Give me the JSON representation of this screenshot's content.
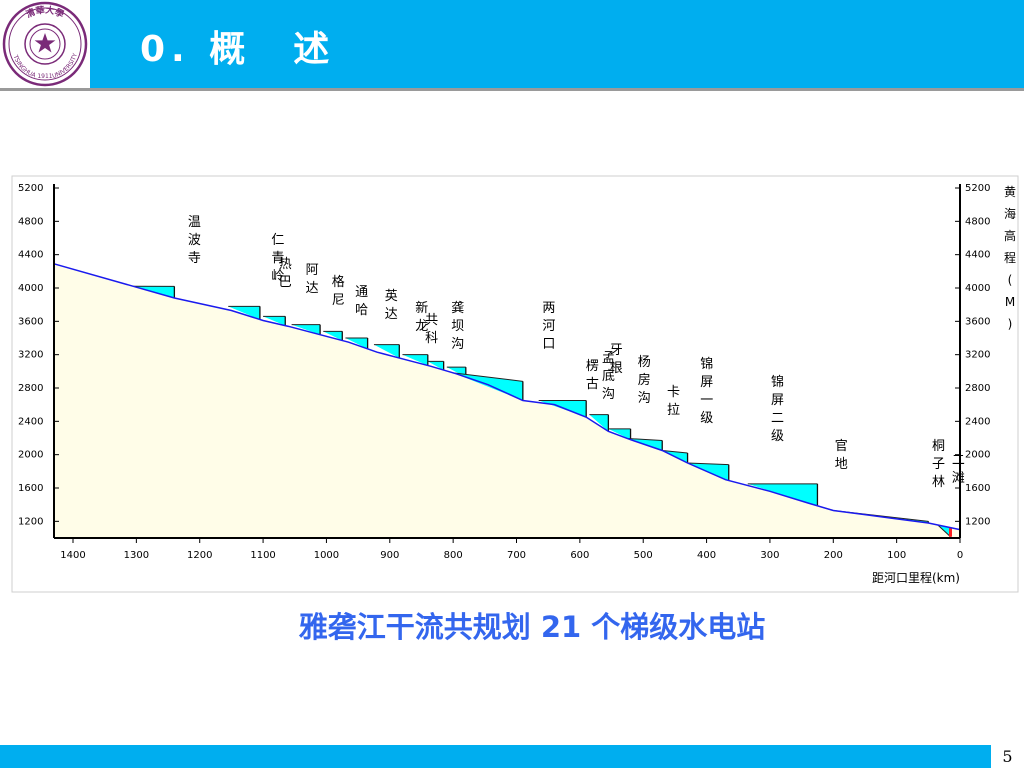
{
  "slide": {
    "title": "0. 概　述",
    "caption": "雅砻江干流共规划 21 个梯级水电站",
    "page_number": "5"
  },
  "logo": {
    "top_text": "清華大學",
    "left_text": "TSINGHUA",
    "right_text": "UNIVERSITY",
    "year": "1911"
  },
  "colors": {
    "header": "#00aeef",
    "caption": "#3366ee",
    "reservoir": "#00ffff",
    "river": "#1a1aee",
    "grid": "#ffe033"
  },
  "chart_data": {
    "type": "line",
    "xlabel": "距河口里程(km)",
    "ylabel": "黄海高程(M)",
    "xlim": [
      1430,
      0
    ],
    "ylim": [
      1000,
      5200
    ],
    "x_ticks": [
      1400,
      1300,
      1200,
      1100,
      1000,
      900,
      800,
      700,
      600,
      500,
      400,
      300,
      200,
      100,
      0
    ],
    "y_ticks": [
      1200,
      1600,
      2000,
      2400,
      2800,
      3200,
      3600,
      4000,
      4400,
      4800,
      5200
    ],
    "grid": true,
    "profile_x": [
      1430,
      1300,
      1240,
      1150,
      1100,
      1060,
      1010,
      965,
      920,
      875,
      835,
      795,
      745,
      690,
      640,
      590,
      555,
      520,
      470,
      430,
      370,
      300,
      240,
      200,
      150,
      50,
      0
    ],
    "profile_y": [
      4290,
      4010,
      3880,
      3730,
      3610,
      3540,
      3440,
      3350,
      3230,
      3140,
      3060,
      2970,
      2840,
      2650,
      2600,
      2450,
      2280,
      2180,
      2050,
      1900,
      1700,
      1560,
      1420,
      1330,
      1280,
      1180,
      1100
    ],
    "stations": [
      {
        "name": "温波寺",
        "label_lines": [
          "温",
          "波",
          "寺"
        ],
        "km": 1240,
        "normal_level": 4020,
        "reservoir_length_km": 65
      },
      {
        "name": "仁青岭",
        "label_lines": [
          "仁",
          "青",
          "岭"
        ],
        "km": 1105,
        "normal_level": 3780,
        "reservoir_length_km": 50
      },
      {
        "name": "热巴",
        "label_lines": [
          "热",
          "巴"
        ],
        "km": 1065,
        "normal_level": 3660,
        "reservoir_length_km": 35
      },
      {
        "name": "阿达",
        "label_lines": [
          "阿",
          "达"
        ],
        "km": 1010,
        "normal_level": 3560,
        "reservoir_length_km": 45
      },
      {
        "name": "格尼",
        "label_lines": [
          "格",
          "尼"
        ],
        "km": 975,
        "normal_level": 3480,
        "reservoir_length_km": 30
      },
      {
        "name": "通哈",
        "label_lines": [
          "通",
          "哈"
        ],
        "km": 935,
        "normal_level": 3400,
        "reservoir_length_km": 35
      },
      {
        "name": "英达",
        "label_lines": [
          "英",
          "达"
        ],
        "km": 885,
        "normal_level": 3320,
        "reservoir_length_km": 40
      },
      {
        "name": "新龙",
        "label_lines": [
          "新",
          "龙"
        ],
        "km": 840,
        "normal_level": 3200,
        "reservoir_length_km": 40
      },
      {
        "name": "共科",
        "label_lines": [
          "共",
          "科"
        ],
        "km": 815,
        "normal_level": 3120,
        "reservoir_length_km": 25
      },
      {
        "name": "龚坝沟",
        "label_lines": [
          "龚",
          "坝",
          "沟"
        ],
        "km": 780,
        "normal_level": 3050,
        "reservoir_length_km": 30
      },
      {
        "name": "两河口",
        "label_lines": [
          "两",
          "河",
          "口"
        ],
        "km": 690,
        "normal_level": 2880,
        "reservoir_length_km": 110
      },
      {
        "name": "牙根",
        "label_lines": [
          "牙",
          "根"
        ],
        "km": 590,
        "normal_level": 2650,
        "reservoir_length_km": 75
      },
      {
        "name": "楞古",
        "label_lines": [
          "楞",
          "古"
        ],
        "km": 555,
        "normal_level": 2480,
        "reservoir_length_km": 30
      },
      {
        "name": "孟底沟",
        "label_lines": [
          "孟",
          "底",
          "沟"
        ],
        "km": 520,
        "normal_level": 2310,
        "reservoir_length_km": 35
      },
      {
        "name": "杨房沟",
        "label_lines": [
          "杨",
          "房",
          "沟"
        ],
        "km": 470,
        "normal_level": 2170,
        "reservoir_length_km": 55
      },
      {
        "name": "卡拉",
        "label_lines": [
          "卡",
          "拉"
        ],
        "km": 430,
        "normal_level": 2020,
        "reservoir_length_km": 40
      },
      {
        "name": "锦屏一级",
        "label_lines": [
          "锦",
          "屏",
          "一",
          "级"
        ],
        "km": 365,
        "normal_level": 1880,
        "reservoir_length_km": 65
      },
      {
        "name": "锦屏二级",
        "label_lines": [
          "锦",
          "屏",
          "二",
          "级"
        ],
        "km": 225,
        "normal_level": 1650,
        "reservoir_length_km": 110
      },
      {
        "name": "官地",
        "label_lines": [
          "官",
          "地"
        ],
        "km": 200,
        "normal_level": 1330,
        "reservoir_length_km": 25
      },
      {
        "name": "二滩",
        "label_lines": [
          "二",
          "滩"
        ],
        "km": 50,
        "normal_level": 1200,
        "reservoir_length_km": 150
      },
      {
        "name": "桐子林",
        "label_lines": [
          "桐",
          "子",
          "林"
        ],
        "km": 15,
        "normal_level": 1015,
        "reservoir_length_km": 20
      }
    ]
  }
}
